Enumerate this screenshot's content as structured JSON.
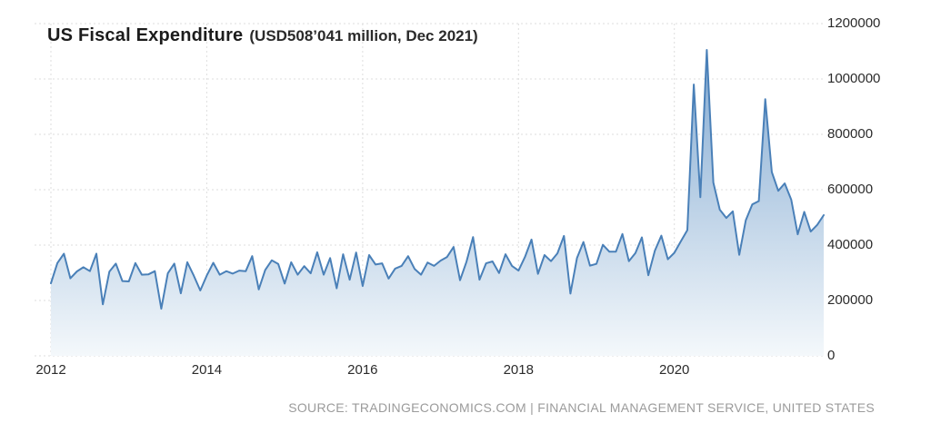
{
  "header": {
    "title": "US Fiscal Expenditure",
    "subtitle": "(USD508’041 million, Dec 2021)"
  },
  "source": {
    "prefix": "SOURCE: ",
    "link": "TRADINGECONOMICS.COM",
    "suffix": " | FINANCIAL MANAGEMENT SERVICE, UNITED STATES"
  },
  "theme": {
    "line": "#4a80b8",
    "fill_top": "#79a3ce",
    "fill_bottom": "#f4f8fb",
    "grid": "#dedede",
    "tick_text": "#2b2b2b",
    "source_text": "#9b9b9b",
    "background": "#ffffff"
  },
  "chart_data": {
    "type": "area",
    "title": "US Fiscal Expenditure",
    "subtitle": "(USD508’041 million, Dec 2021)",
    "unit": "USD million",
    "latest": {
      "period": "Dec 2021",
      "value": 508041
    },
    "ylim": [
      0,
      1200000
    ],
    "grid": "dotted",
    "legend_position": "none",
    "y_ticks": [
      {
        "value": 0,
        "label": "0"
      },
      {
        "value": 200000,
        "label": "200000"
      },
      {
        "value": 400000,
        "label": "400000"
      },
      {
        "value": 600000,
        "label": "600000"
      },
      {
        "value": 800000,
        "label": "800000"
      },
      {
        "value": 1000000,
        "label": "1000000"
      },
      {
        "value": 1200000,
        "label": "1200000"
      }
    ],
    "x_ticks": [
      {
        "month_index": 0,
        "label": "2012"
      },
      {
        "month_index": 24,
        "label": "2014"
      },
      {
        "month_index": 48,
        "label": "2016"
      },
      {
        "month_index": 72,
        "label": "2018"
      },
      {
        "month_index": 96,
        "label": "2020"
      }
    ],
    "x": [
      "2012-01",
      "2012-02",
      "2012-03",
      "2012-04",
      "2012-05",
      "2012-06",
      "2012-07",
      "2012-08",
      "2012-09",
      "2012-10",
      "2012-11",
      "2012-12",
      "2013-01",
      "2013-02",
      "2013-03",
      "2013-04",
      "2013-05",
      "2013-06",
      "2013-07",
      "2013-08",
      "2013-09",
      "2013-10",
      "2013-11",
      "2013-12",
      "2014-01",
      "2014-02",
      "2014-03",
      "2014-04",
      "2014-05",
      "2014-06",
      "2014-07",
      "2014-08",
      "2014-09",
      "2014-10",
      "2014-11",
      "2014-12",
      "2015-01",
      "2015-02",
      "2015-03",
      "2015-04",
      "2015-05",
      "2015-06",
      "2015-07",
      "2015-08",
      "2015-09",
      "2015-10",
      "2015-11",
      "2015-12",
      "2016-01",
      "2016-02",
      "2016-03",
      "2016-04",
      "2016-05",
      "2016-06",
      "2016-07",
      "2016-08",
      "2016-09",
      "2016-10",
      "2016-11",
      "2016-12",
      "2017-01",
      "2017-02",
      "2017-03",
      "2017-04",
      "2017-05",
      "2017-06",
      "2017-07",
      "2017-08",
      "2017-09",
      "2017-10",
      "2017-11",
      "2017-12",
      "2018-01",
      "2018-02",
      "2018-03",
      "2018-04",
      "2018-05",
      "2018-06",
      "2018-07",
      "2018-08",
      "2018-09",
      "2018-10",
      "2018-11",
      "2018-12",
      "2019-01",
      "2019-02",
      "2019-03",
      "2019-04",
      "2019-05",
      "2019-06",
      "2019-07",
      "2019-08",
      "2019-09",
      "2019-10",
      "2019-11",
      "2019-12",
      "2020-01",
      "2020-02",
      "2020-03",
      "2020-04",
      "2020-05",
      "2020-06",
      "2020-07",
      "2020-08",
      "2020-09",
      "2020-10",
      "2020-11",
      "2020-12",
      "2021-01",
      "2021-02",
      "2021-03",
      "2021-04",
      "2021-05",
      "2021-06",
      "2021-07",
      "2021-08",
      "2021-09",
      "2021-10",
      "2021-11",
      "2021-12"
    ],
    "values": [
      262000,
      335000,
      369000,
      280000,
      305000,
      320000,
      306000,
      369000,
      186000,
      304000,
      333000,
      270000,
      269000,
      335000,
      293000,
      294000,
      306000,
      170000,
      298000,
      333000,
      226000,
      338000,
      290000,
      236000,
      290000,
      336000,
      293000,
      306000,
      297000,
      308000,
      306000,
      360000,
      240000,
      310000,
      345000,
      332000,
      261000,
      338000,
      293000,
      324000,
      298000,
      374000,
      293000,
      353000,
      244000,
      367000,
      275000,
      373000,
      252000,
      364000,
      330000,
      334000,
      279000,
      315000,
      325000,
      360000,
      314000,
      293000,
      337000,
      325000,
      344000,
      357000,
      393000,
      273000,
      340000,
      429000,
      275000,
      334000,
      341000,
      299000,
      367000,
      325000,
      308000,
      357000,
      420000,
      296000,
      364000,
      342000,
      370000,
      433000,
      225000,
      353000,
      411000,
      326000,
      332000,
      401000,
      376000,
      376000,
      440000,
      342000,
      371000,
      428000,
      291000,
      380000,
      434000,
      349000,
      372000,
      414000,
      454000,
      980000,
      573000,
      1105000,
      626000,
      528000,
      498000,
      522000,
      365000,
      490000,
      547000,
      559000,
      927000,
      664000,
      596000,
      623000,
      564000,
      439000,
      520000,
      449000,
      473000,
      508041
    ]
  }
}
